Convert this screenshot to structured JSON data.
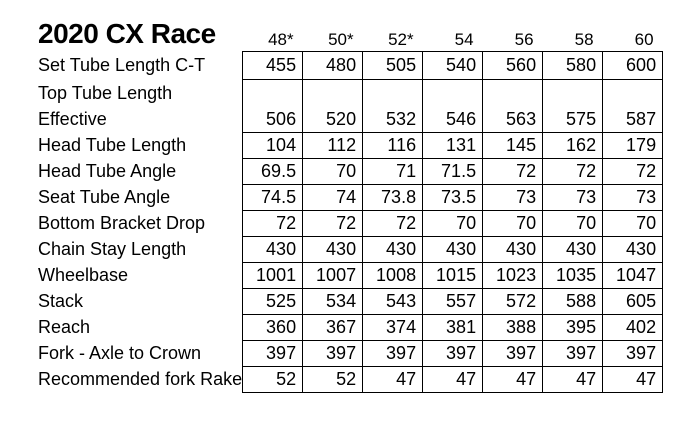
{
  "title": "2020 CX Race",
  "table": {
    "size_headers": [
      "48*",
      "50*",
      "52*",
      "54",
      "56",
      "58",
      "60"
    ],
    "rows": [
      {
        "label": "Set Tube Length C-T",
        "values": [
          "455",
          "480",
          "505",
          "540",
          "560",
          "580",
          "600"
        ]
      },
      {
        "label": "Top Tube Length Effective",
        "label_lines": [
          "Top Tube Length",
          "Effective"
        ],
        "values": [
          "506",
          "520",
          "532",
          "546",
          "563",
          "575",
          "587"
        ]
      },
      {
        "label": "Head Tube Length",
        "values": [
          "104",
          "112",
          "116",
          "131",
          "145",
          "162",
          "179"
        ]
      },
      {
        "label": "Head Tube Angle",
        "values": [
          "69.5",
          "70",
          "71",
          "71.5",
          "72",
          "72",
          "72"
        ]
      },
      {
        "label": "Seat Tube Angle",
        "values": [
          "74.5",
          "74",
          "73.8",
          "73.5",
          "73",
          "73",
          "73"
        ]
      },
      {
        "label": "Bottom Bracket Drop",
        "values": [
          "72",
          "72",
          "72",
          "70",
          "70",
          "70",
          "70"
        ]
      },
      {
        "label": "Chain Stay Length",
        "values": [
          "430",
          "430",
          "430",
          "430",
          "430",
          "430",
          "430"
        ]
      },
      {
        "label": "Wheelbase",
        "values": [
          "1001",
          "1007",
          "1008",
          "1015",
          "1023",
          "1035",
          "1047"
        ]
      },
      {
        "label": "Stack",
        "values": [
          "525",
          "534",
          "543",
          "557",
          "572",
          "588",
          "605"
        ]
      },
      {
        "label": "Reach",
        "values": [
          "360",
          "367",
          "374",
          "381",
          "388",
          "395",
          "402"
        ]
      },
      {
        "label": "Fork - Axle to Crown",
        "values": [
          "397",
          "397",
          "397",
          "397",
          "397",
          "397",
          "397"
        ]
      },
      {
        "label": "Recommended fork Rake",
        "values": [
          "52",
          "52",
          "47",
          "47",
          "47",
          "47",
          "47"
        ]
      }
    ]
  }
}
